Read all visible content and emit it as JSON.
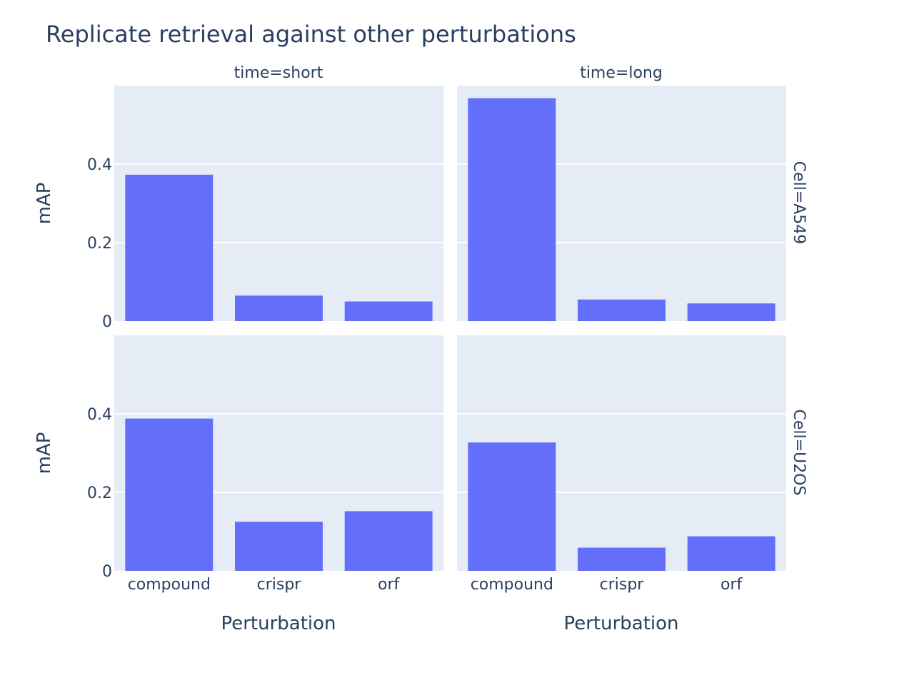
{
  "chart_data": {
    "type": "bar",
    "title": "Replicate retrieval against other perturbations",
    "xlabel": "Perturbation",
    "ylabel": "mAP",
    "categories": [
      "compound",
      "crispr",
      "orf"
    ],
    "ylim": [
      0,
      0.6
    ],
    "yticks": [
      0,
      0.2,
      0.4
    ],
    "ytick_labels": [
      "0",
      "0.2",
      "0.4"
    ],
    "grid": true,
    "bar_color": "#636efa",
    "panel_background": "#e5ecf6",
    "columns": [
      "time=short",
      "time=long"
    ],
    "rows": [
      "Cell=A549",
      "Cell=U2OS"
    ],
    "facets": [
      {
        "row": "Cell=A549",
        "col": "time=short",
        "values": [
          0.373,
          0.065,
          0.05
        ]
      },
      {
        "row": "Cell=A549",
        "col": "time=long",
        "values": [
          0.568,
          0.055,
          0.045
        ]
      },
      {
        "row": "Cell=U2OS",
        "col": "time=short",
        "values": [
          0.388,
          0.125,
          0.152
        ]
      },
      {
        "row": "Cell=U2OS",
        "col": "time=long",
        "values": [
          0.327,
          0.059,
          0.088
        ]
      }
    ]
  }
}
